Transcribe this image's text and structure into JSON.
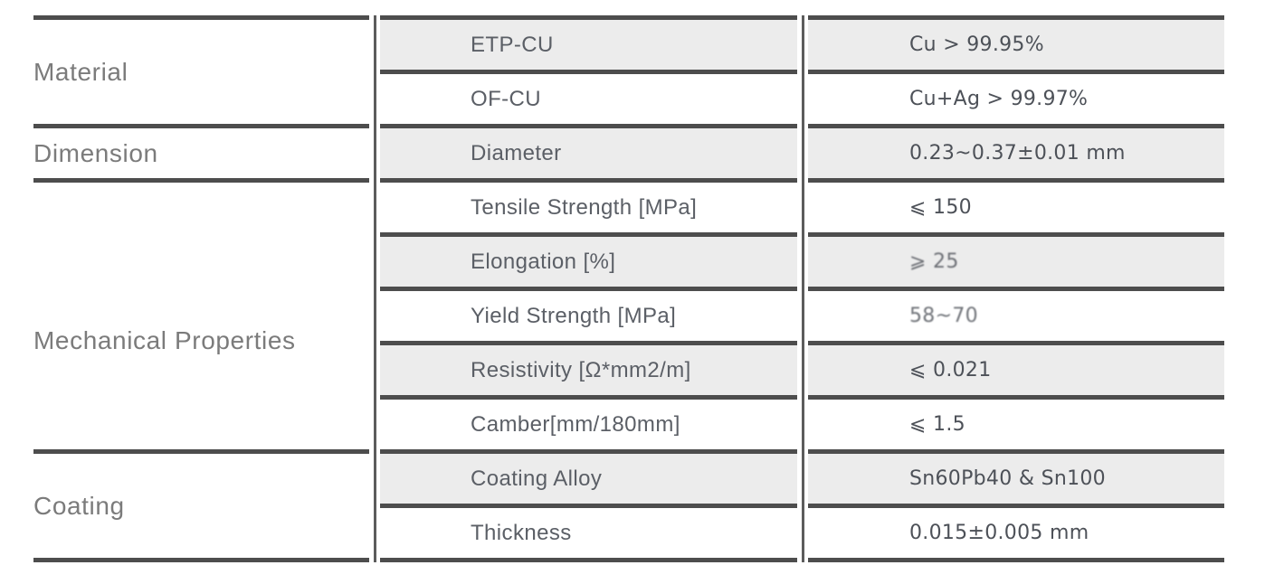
{
  "colors": {
    "line": "#4d4d4d",
    "vline": "#5c5c5c",
    "rowbg": "#ececec",
    "cat-text": "#7b7b7b",
    "prop-text": "#5b5f66",
    "val-text": "#4d5158"
  },
  "table": {
    "groups": [
      {
        "label": "Material",
        "rows": [
          {
            "property": "ETP-CU",
            "value": "Cu > 99.95%"
          },
          {
            "property": "OF-CU",
            "value": "Cu+Ag > 99.97%"
          }
        ]
      },
      {
        "label": "Dimension",
        "rows": [
          {
            "property": "Diameter",
            "value": "0.23~0.37±0.01 mm"
          }
        ]
      },
      {
        "label": "Mechanical Properties",
        "rows": [
          {
            "property": "Tensile Strength [MPa]",
            "value": "⩽ 150"
          },
          {
            "property": "Elongation [%]",
            "value": "⩾ 25"
          },
          {
            "property": "Yield Strength [MPa]",
            "value": "58~70"
          },
          {
            "property": "Resistivity [Ω*mm2/m]",
            "value": "⩽ 0.021"
          },
          {
            "property": "Camber[mm/180mm]",
            "value": "⩽ 1.5"
          }
        ]
      },
      {
        "label": "Coating",
        "rows": [
          {
            "property": "Coating Alloy",
            "value": "Sn60Pb40 & Sn100"
          },
          {
            "property": "Thickness",
            "value": "0.015±0.005 mm"
          }
        ]
      }
    ]
  }
}
